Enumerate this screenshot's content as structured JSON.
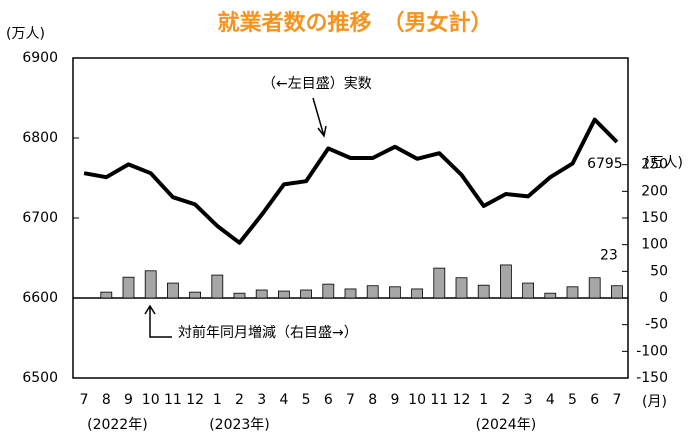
{
  "chart_data": {
    "type": "bar_line",
    "title": "就業者数の推移　（男女計）",
    "y_unit": "(万人)",
    "y2_unit": "(万人)",
    "x_unit": "(月)",
    "categories": [
      "7",
      "8",
      "9",
      "10",
      "11",
      "12",
      "1",
      "2",
      "3",
      "4",
      "5",
      "6",
      "7",
      "8",
      "9",
      "10",
      "11",
      "12",
      "1",
      "2",
      "3",
      "4",
      "5",
      "6",
      "7"
    ],
    "year_labels": [
      "(2022年)",
      "(2023年)",
      "(2024年)"
    ],
    "series": [
      {
        "name": "（←左目盛）実数",
        "type": "line",
        "color": "#000000",
        "values": [
          6756,
          6751,
          6767,
          6756,
          6726,
          6717,
          6690,
          6669,
          6704,
          6742,
          6746,
          6787,
          6775,
          6775,
          6789,
          6774,
          6781,
          6754,
          6715,
          6730,
          6727,
          6751,
          6768,
          6823,
          6795
        ]
      },
      {
        "name": "対前年同月増減（右目盛→）",
        "type": "bar",
        "axis": "y2",
        "color": "#a6a6a6",
        "values": [
          null,
          11,
          39,
          51,
          28,
          11,
          43,
          9,
          15,
          13,
          15,
          26,
          17,
          23,
          21,
          17,
          56,
          38,
          24,
          62,
          28,
          9,
          21,
          38,
          23
        ]
      }
    ],
    "ylim": [
      6500,
      6900
    ],
    "yticks": [
      6500,
      6600,
      6700,
      6800,
      6900
    ],
    "y2lim": [
      -150,
      450
    ],
    "y2ticks": [
      -150,
      -100,
      -50,
      0,
      50,
      100,
      150,
      200,
      250
    ]
  }
}
